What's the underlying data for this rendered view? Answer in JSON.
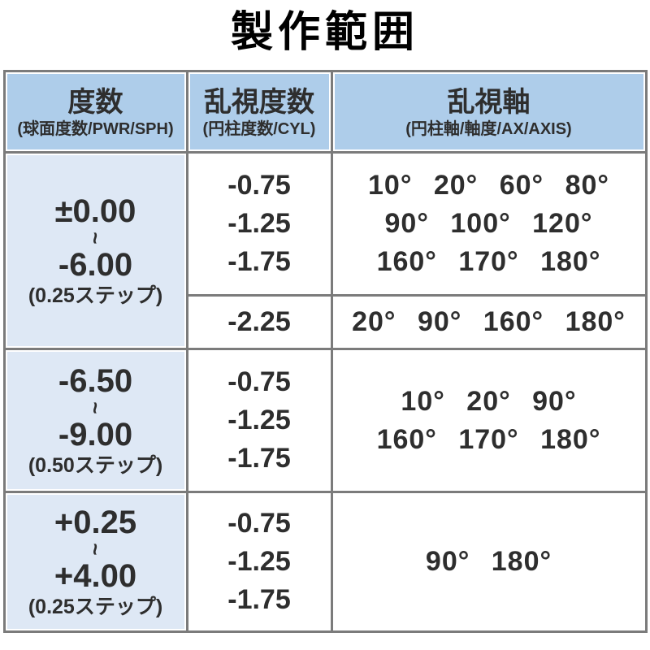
{
  "title": "製作範囲",
  "colors": {
    "header_bg": "#aecdea",
    "power_col_bg": "#dee8f5",
    "grid_border": "#7b7b7b",
    "cell_bg": "#ffffff",
    "text": "#2e2e2e",
    "title_text": "#000000"
  },
  "table": {
    "headers": {
      "power": {
        "main": "度数",
        "sub": "(球面度数/PWR/SPH)"
      },
      "cylinder": {
        "main": "乱視度数",
        "sub": "(円柱度数/CYL)"
      },
      "axis": {
        "main": "乱視軸",
        "sub": "(円柱軸/軸度/AX/AXIS)"
      }
    },
    "rows": [
      {
        "power": {
          "from": "±0.00",
          "tilde": "~",
          "to": "-6.00",
          "step": "(0.25ステップ)"
        },
        "blocks": [
          {
            "cyl": [
              "-0.75",
              "-1.25",
              "-1.75"
            ],
            "axis": [
              "10° 20° 60° 80°",
              "90° 100° 120°",
              "160° 170° 180°"
            ]
          },
          {
            "cyl": [
              "-2.25"
            ],
            "axis": [
              "20° 90° 160° 180°"
            ]
          }
        ]
      },
      {
        "power": {
          "from": "-6.50",
          "tilde": "~",
          "to": "-9.00",
          "step": "(0.50ステップ)"
        },
        "blocks": [
          {
            "cyl": [
              "-0.75",
              "-1.25",
              "-1.75"
            ],
            "axis": [
              "10° 20° 90°",
              "160° 170° 180°"
            ]
          }
        ]
      },
      {
        "power": {
          "from": "+0.25",
          "tilde": "~",
          "to": "+4.00",
          "step": "(0.25ステップ)"
        },
        "blocks": [
          {
            "cyl": [
              "-0.75",
              "-1.25",
              "-1.75"
            ],
            "axis": [
              "90° 180°"
            ]
          }
        ]
      }
    ]
  }
}
